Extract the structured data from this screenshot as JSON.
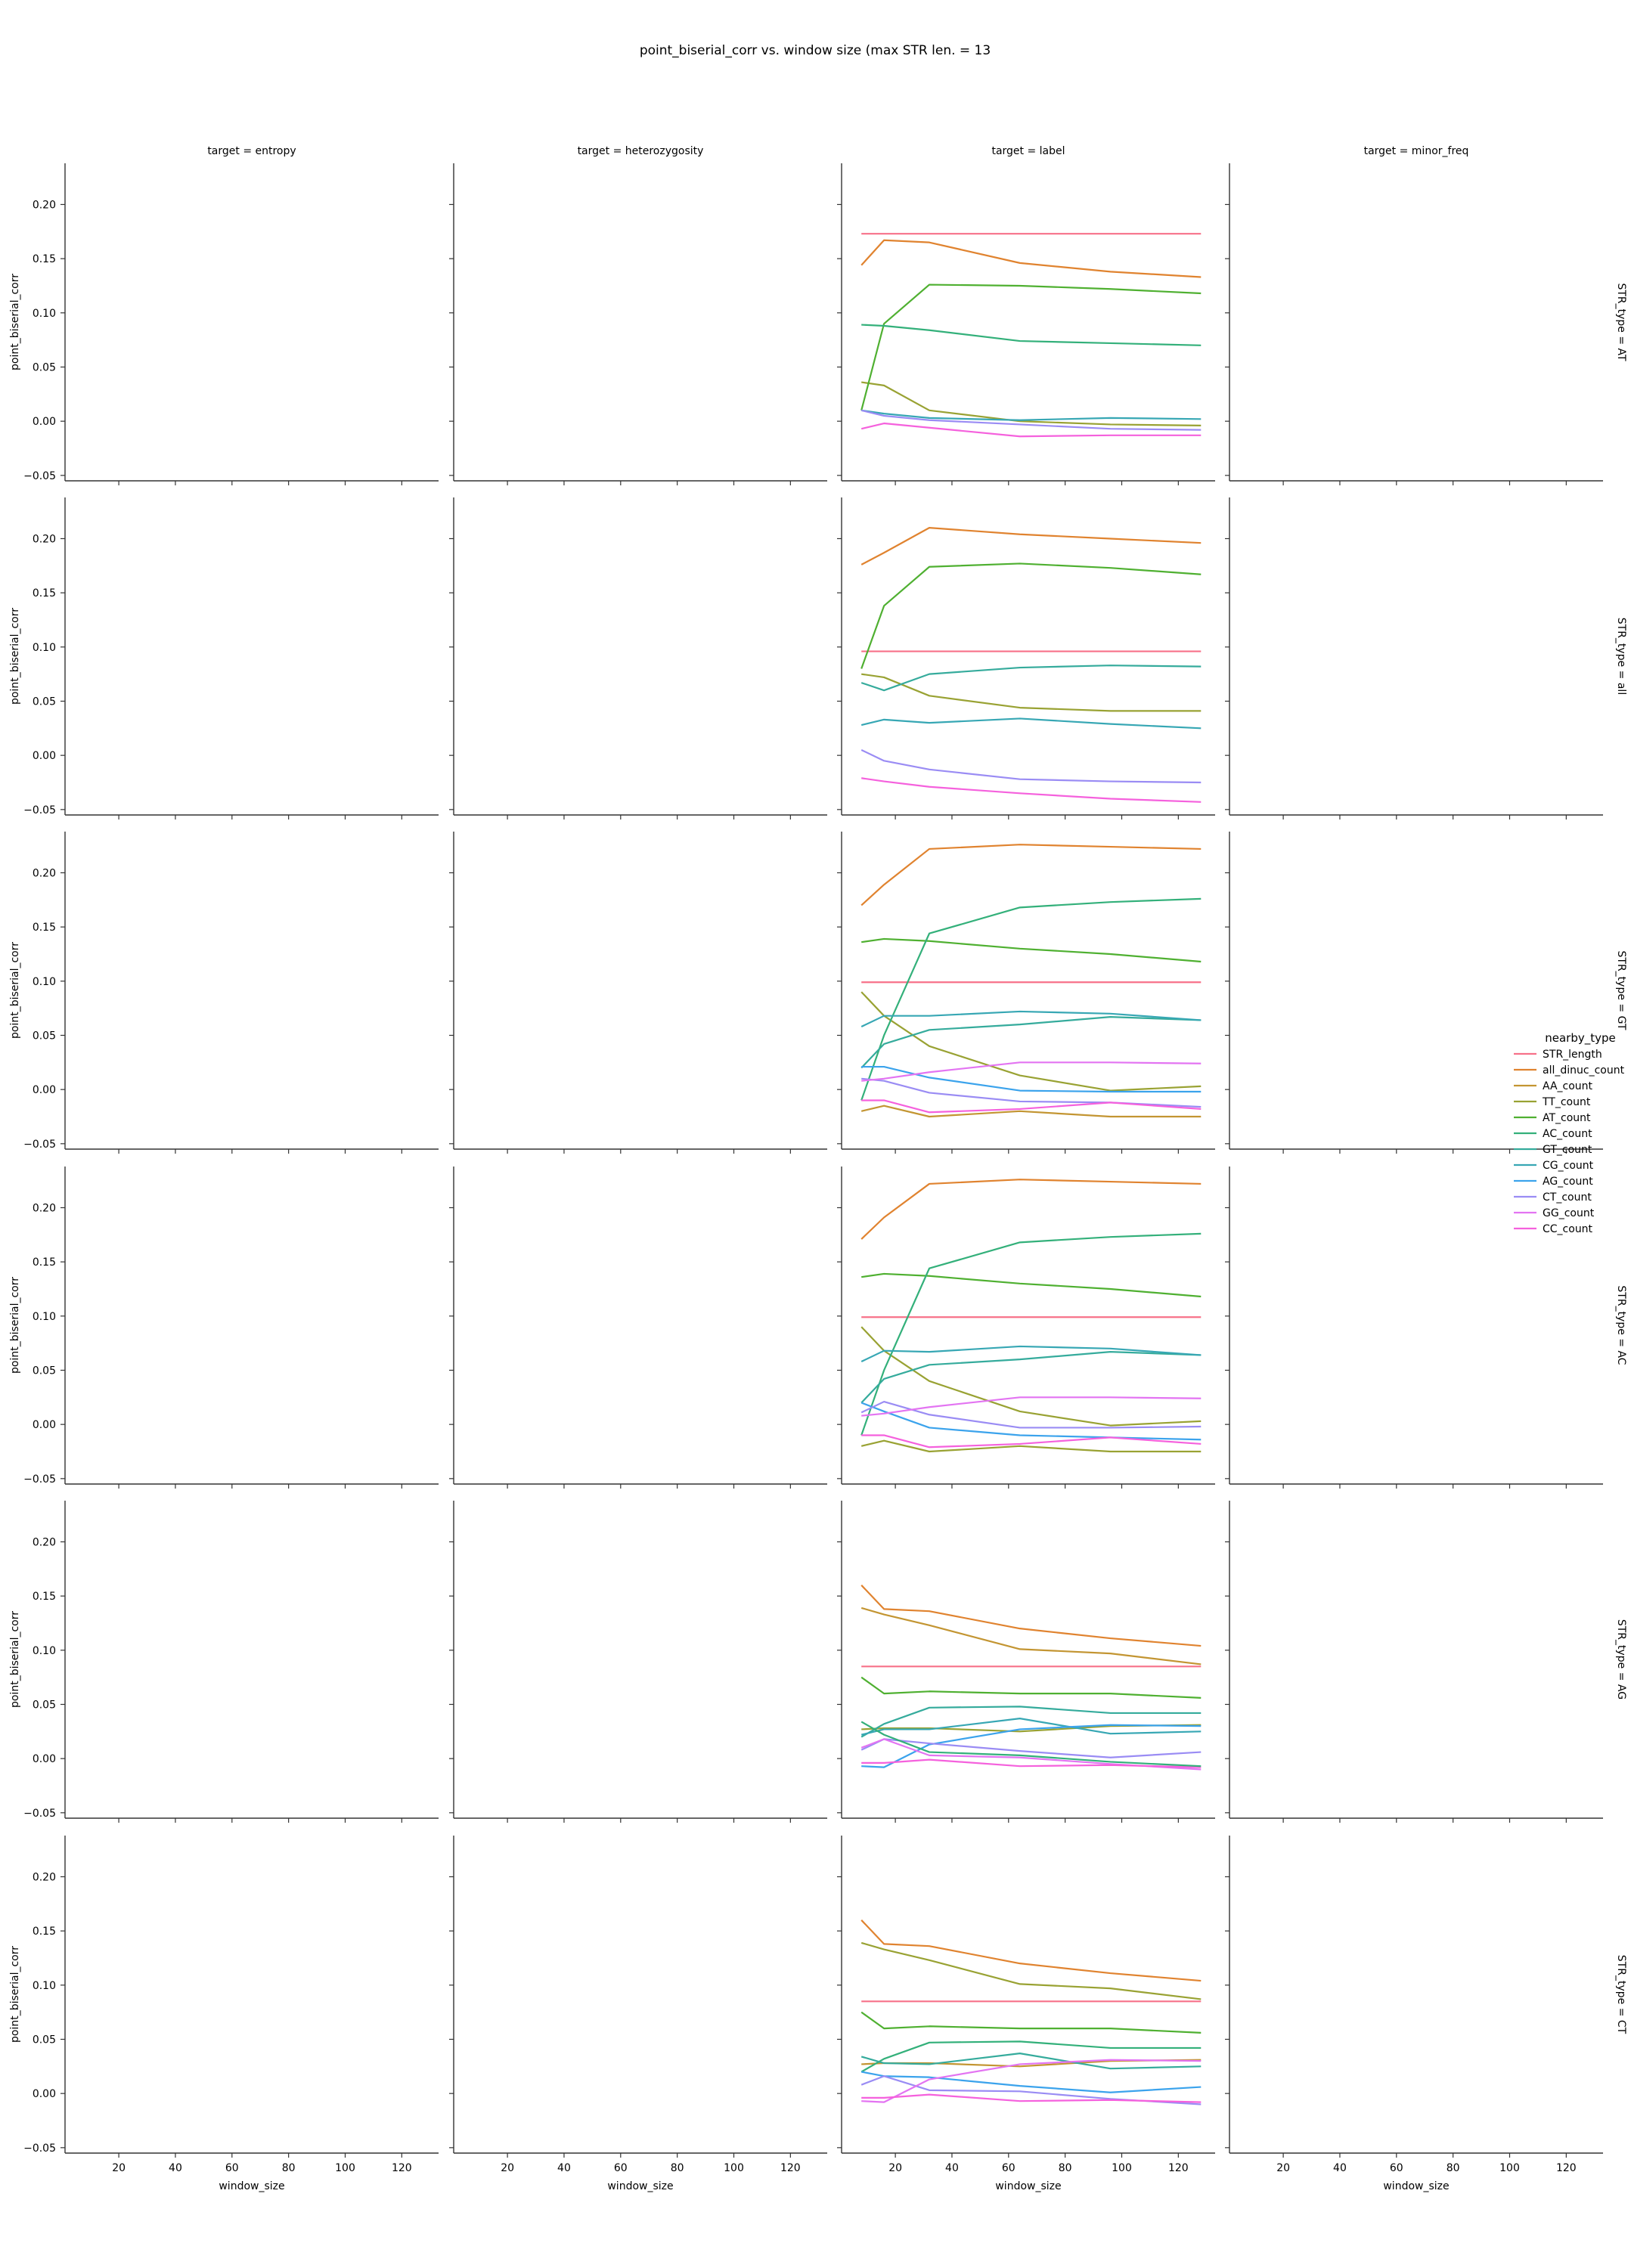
{
  "figure": {
    "title": "point_biserial_corr vs. window size (max STR len. = 13",
    "legend_title": "nearby_type",
    "x_label": "window_size",
    "y_label": "point_biserial_corr",
    "column_titles": [
      "target = entropy",
      "target = heterozygosity",
      "target = label",
      "target = minor_freq"
    ],
    "row_titles": [
      "STR_type = AT",
      "STR_type = all",
      "STR_type = GT",
      "STR_type = AC",
      "STR_type = AG",
      "STR_type = CT"
    ]
  },
  "chart_data": {
    "type": "line",
    "grid": false,
    "legend_position": "right",
    "x_ticks": [
      20,
      40,
      60,
      80,
      100,
      120
    ],
    "y_ticks": [
      -0.05,
      0.0,
      0.05,
      0.1,
      0.15,
      0.2
    ],
    "y_tick_labels": [
      "−0.05",
      "0.00",
      "0.05",
      "0.10",
      "0.15",
      "0.20"
    ],
    "xlim": [
      1,
      133
    ],
    "ylim": [
      -0.055,
      0.238
    ],
    "x": [
      8,
      16,
      32,
      64,
      96,
      128
    ],
    "series_names": [
      "STR_length",
      "all_dinuc_count",
      "AA_count",
      "TT_count",
      "AT_count",
      "AC_count",
      "GT_count",
      "CG_count",
      "AG_count",
      "CT_count",
      "GG_count",
      "CC_count"
    ],
    "series_colors": [
      "#f77189",
      "#e0832f",
      "#c39532",
      "#99a233",
      "#4fb031",
      "#33b07a",
      "#35ab9c",
      "#37a7b4",
      "#3ba3ec",
      "#9a8cf4",
      "#e374f2",
      "#f561dd"
    ],
    "facets": [
      {
        "row": "STR_type = AT",
        "col": "target = label",
        "series": [
          {
            "name": "STR_length",
            "values": [
              0.173,
              0.173,
              0.173,
              0.173,
              0.173,
              0.173
            ]
          },
          {
            "name": "all_dinuc_count",
            "values": [
              0.144,
              0.167,
              0.165,
              0.146,
              0.138,
              0.133
            ]
          },
          {
            "name": "TT_count",
            "values": [
              0.036,
              0.033,
              0.01,
              0.0,
              -0.003,
              -0.004
            ]
          },
          {
            "name": "AT_count",
            "values": [
              0.01,
              0.09,
              0.126,
              0.125,
              0.122,
              0.118
            ]
          },
          {
            "name": "AC_count",
            "values": [
              0.089,
              0.088,
              0.084,
              0.074,
              0.072,
              0.07
            ]
          },
          {
            "name": "CG_count",
            "values": [
              0.01,
              0.007,
              0.003,
              0.001,
              0.003,
              0.002
            ]
          },
          {
            "name": "CT_count",
            "values": [
              0.01,
              0.005,
              0.001,
              -0.003,
              -0.007,
              -0.008
            ]
          },
          {
            "name": "CC_count",
            "values": [
              -0.007,
              -0.002,
              -0.006,
              -0.014,
              -0.013,
              -0.013
            ]
          }
        ]
      },
      {
        "row": "STR_type = all",
        "col": "target = label",
        "series": [
          {
            "name": "STR_length",
            "values": [
              0.096,
              0.096,
              0.096,
              0.096,
              0.096,
              0.096
            ]
          },
          {
            "name": "all_dinuc_count",
            "values": [
              0.176,
              0.187,
              0.21,
              0.204,
              0.2,
              0.196
            ]
          },
          {
            "name": "TT_count",
            "values": [
              0.075,
              0.072,
              0.055,
              0.044,
              0.041,
              0.041
            ]
          },
          {
            "name": "AT_count",
            "values": [
              0.08,
              0.138,
              0.174,
              0.177,
              0.173,
              0.167
            ]
          },
          {
            "name": "GT_count",
            "values": [
              0.067,
              0.06,
              0.075,
              0.081,
              0.083,
              0.082
            ]
          },
          {
            "name": "CG_count",
            "values": [
              0.028,
              0.033,
              0.03,
              0.034,
              0.029,
              0.025
            ]
          },
          {
            "name": "CT_count",
            "values": [
              0.005,
              -0.005,
              -0.013,
              -0.022,
              -0.024,
              -0.025
            ]
          },
          {
            "name": "CC_count",
            "values": [
              -0.021,
              -0.024,
              -0.029,
              -0.035,
              -0.04,
              -0.043
            ]
          }
        ]
      },
      {
        "row": "STR_type = GT",
        "col": "target = label",
        "series": [
          {
            "name": "STR_length",
            "values": [
              0.099,
              0.099,
              0.099,
              0.099,
              0.099,
              0.099
            ]
          },
          {
            "name": "all_dinuc_count",
            "values": [
              0.17,
              0.189,
              0.222,
              0.226,
              0.224,
              0.222
            ]
          },
          {
            "name": "AA_count",
            "values": [
              -0.02,
              -0.015,
              -0.025,
              -0.02,
              -0.025,
              -0.025
            ]
          },
          {
            "name": "TT_count",
            "values": [
              0.09,
              0.068,
              0.04,
              0.013,
              -0.001,
              0.003
            ]
          },
          {
            "name": "AT_count",
            "values": [
              0.136,
              0.139,
              0.137,
              0.13,
              0.125,
              0.118
            ]
          },
          {
            "name": "AC_count",
            "values": [
              -0.01,
              0.05,
              0.144,
              0.168,
              0.173,
              0.176
            ]
          },
          {
            "name": "GT_count",
            "values": [
              0.02,
              0.042,
              0.055,
              0.06,
              0.067,
              0.064
            ]
          },
          {
            "name": "CG_count",
            "values": [
              0.058,
              0.068,
              0.068,
              0.072,
              0.07,
              0.064
            ]
          },
          {
            "name": "AG_count",
            "values": [
              0.021,
              0.021,
              0.011,
              -0.001,
              -0.002,
              -0.002
            ]
          },
          {
            "name": "CT_count",
            "values": [
              0.01,
              0.008,
              -0.003,
              -0.011,
              -0.012,
              -0.016
            ]
          },
          {
            "name": "GG_count",
            "values": [
              0.008,
              0.01,
              0.016,
              0.025,
              0.025,
              0.024
            ]
          },
          {
            "name": "CC_count",
            "values": [
              -0.01,
              -0.01,
              -0.021,
              -0.018,
              -0.012,
              -0.018
            ]
          }
        ]
      },
      {
        "row": "STR_type = AC",
        "col": "target = label",
        "series": [
          {
            "name": "STR_length",
            "values": [
              0.099,
              0.099,
              0.099,
              0.099,
              0.099,
              0.099
            ]
          },
          {
            "name": "all_dinuc_count",
            "values": [
              0.171,
              0.191,
              0.222,
              0.226,
              0.224,
              0.222
            ]
          },
          {
            "name": "TT_count",
            "values": [
              0.09,
              0.068,
              0.04,
              0.012,
              -0.001,
              0.003
            ]
          },
          {
            "name": "AT_count",
            "values": [
              0.136,
              0.139,
              0.137,
              0.13,
              0.125,
              0.118
            ]
          },
          {
            "name": "AC_count",
            "values": [
              -0.01,
              0.05,
              0.144,
              0.168,
              0.173,
              0.176
            ]
          },
          {
            "name": "GT_count",
            "values": [
              0.02,
              0.042,
              0.055,
              0.06,
              0.067,
              0.064
            ]
          },
          {
            "name": "CG_count",
            "values": [
              0.058,
              0.068,
              0.067,
              0.072,
              0.07,
              0.064
            ]
          },
          {
            "name": "AG_count",
            "values": [
              0.02,
              0.012,
              -0.003,
              -0.01,
              -0.012,
              -0.014
            ]
          },
          {
            "name": "CT_count",
            "values": [
              0.011,
              0.021,
              0.009,
              -0.003,
              -0.003,
              -0.002
            ]
          },
          {
            "name": "GG_count",
            "values": [
              0.008,
              0.01,
              0.016,
              0.025,
              0.025,
              0.024
            ]
          },
          {
            "name": "CC_count",
            "values": [
              -0.01,
              -0.01,
              -0.021,
              -0.018,
              -0.012,
              -0.018
            ]
          },
          {
            "name": "TT_count",
            "values": [
              -0.02,
              -0.015,
              -0.025,
              -0.02,
              -0.025,
              -0.025
            ]
          }
        ]
      },
      {
        "row": "STR_type = AG",
        "col": "target = label",
        "series": [
          {
            "name": "STR_length",
            "values": [
              0.085,
              0.085,
              0.085,
              0.085,
              0.085,
              0.085
            ]
          },
          {
            "name": "all_dinuc_count",
            "values": [
              0.16,
              0.138,
              0.136,
              0.12,
              0.111,
              0.104
            ]
          },
          {
            "name": "AA_count",
            "values": [
              0.139,
              0.133,
              0.123,
              0.101,
              0.097,
              0.087
            ]
          },
          {
            "name": "TT_count",
            "values": [
              0.027,
              0.028,
              0.028,
              0.025,
              0.03,
              0.031
            ]
          },
          {
            "name": "AT_count",
            "values": [
              0.075,
              0.06,
              0.062,
              0.06,
              0.06,
              0.056
            ]
          },
          {
            "name": "GT_count",
            "values": [
              0.02,
              0.032,
              0.047,
              0.048,
              0.042,
              0.042
            ]
          },
          {
            "name": "CG_count",
            "values": [
              0.022,
              0.027,
              0.027,
              0.037,
              0.023,
              0.025
            ]
          },
          {
            "name": "AG_count",
            "values": [
              -0.007,
              -0.008,
              0.013,
              0.027,
              0.031,
              0.03
            ]
          },
          {
            "name": "CT_count",
            "values": [
              0.008,
              0.018,
              0.014,
              0.007,
              0.001,
              0.006
            ]
          },
          {
            "name": "GG_count",
            "values": [
              0.01,
              0.018,
              0.003,
              0.001,
              -0.005,
              -0.01
            ]
          },
          {
            "name": "CC_count",
            "values": [
              -0.004,
              -0.004,
              -0.001,
              -0.007,
              -0.006,
              -0.008
            ]
          },
          {
            "name": "AC_count",
            "values": [
              0.034,
              0.022,
              0.006,
              0.003,
              -0.003,
              -0.007
            ]
          }
        ]
      },
      {
        "row": "STR_type = CT",
        "col": "target = label",
        "series": [
          {
            "name": "STR_length",
            "values": [
              0.085,
              0.085,
              0.085,
              0.085,
              0.085,
              0.085
            ]
          },
          {
            "name": "all_dinuc_count",
            "values": [
              0.16,
              0.138,
              0.136,
              0.12,
              0.111,
              0.104
            ]
          },
          {
            "name": "TT_count",
            "values": [
              0.139,
              0.133,
              0.123,
              0.101,
              0.097,
              0.087
            ]
          },
          {
            "name": "AA_count",
            "values": [
              0.027,
              0.028,
              0.028,
              0.025,
              0.03,
              0.031
            ]
          },
          {
            "name": "AT_count",
            "values": [
              0.075,
              0.06,
              0.062,
              0.06,
              0.06,
              0.056
            ]
          },
          {
            "name": "AC_count",
            "values": [
              0.02,
              0.032,
              0.047,
              0.048,
              0.042,
              0.042
            ]
          },
          {
            "name": "GT_count",
            "values": [
              0.034,
              0.028,
              0.027,
              0.037,
              0.023,
              0.025
            ]
          },
          {
            "name": "AG_count",
            "values": [
              0.02,
              0.016,
              0.015,
              0.007,
              0.001,
              0.006
            ]
          },
          {
            "name": "CT_count",
            "values": [
              0.008,
              0.016,
              0.003,
              0.002,
              -0.005,
              -0.01
            ]
          },
          {
            "name": "GG_count",
            "values": [
              -0.007,
              -0.008,
              0.013,
              0.027,
              0.031,
              0.03
            ]
          },
          {
            "name": "CC_count",
            "values": [
              -0.004,
              -0.004,
              -0.001,
              -0.007,
              -0.006,
              -0.008
            ]
          }
        ]
      }
    ]
  }
}
